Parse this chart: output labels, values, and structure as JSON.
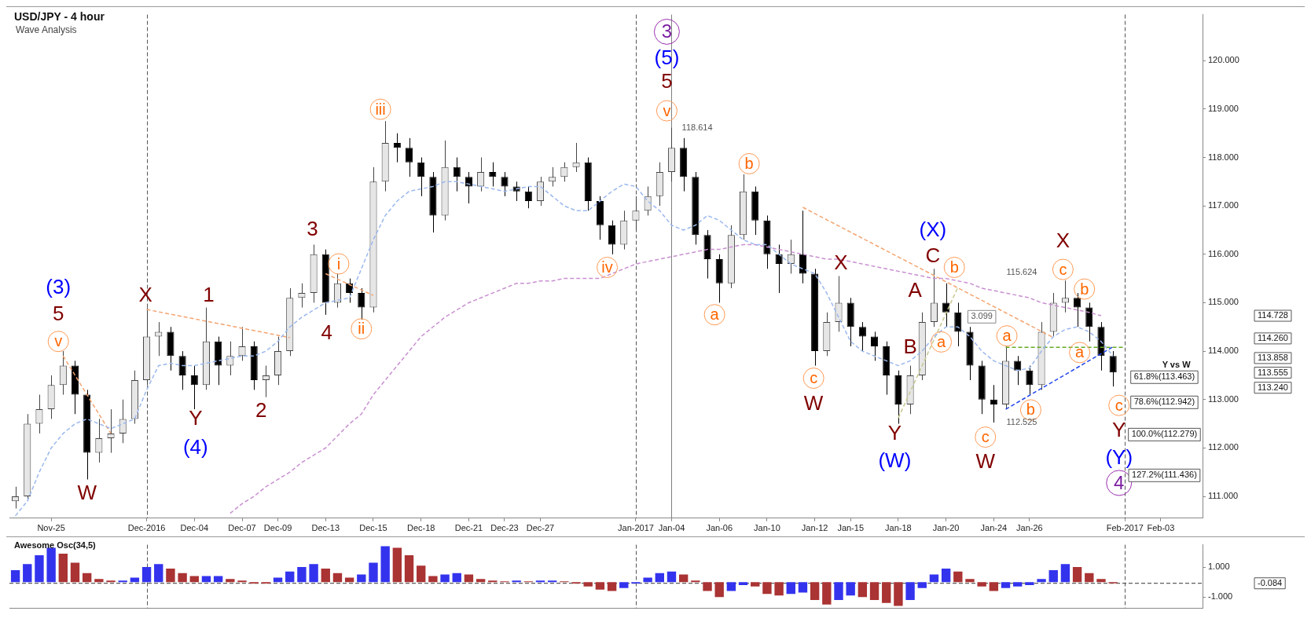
{
  "chart_data": [
    {
      "type": "candlestick",
      "title": "USD/JPY - 4 hour",
      "subtitle": "Wave Analysis",
      "ylim": [
        110.55,
        120.95
      ],
      "yticks": [
        {
          "value": 111,
          "label": "111.000"
        },
        {
          "value": 112,
          "label": "112.000"
        },
        {
          "value": 113,
          "label": "113.000"
        },
        {
          "value": 114,
          "label": "114.000"
        },
        {
          "value": 115,
          "label": "115.000"
        },
        {
          "value": 116,
          "label": "116.000"
        },
        {
          "value": 117,
          "label": "117.000"
        },
        {
          "value": 118,
          "label": "118.000"
        },
        {
          "value": 119,
          "label": "119.000"
        },
        {
          "value": 120,
          "label": "120.000"
        }
      ],
      "categories": [
        null,
        null,
        null,
        "Nov-25",
        null,
        null,
        null,
        null,
        null,
        null,
        null,
        "Dec-2016",
        null,
        null,
        null,
        "Dec-04",
        null,
        null,
        null,
        "Dec-07",
        null,
        null,
        "Dec-09",
        null,
        null,
        null,
        "Dec-13",
        null,
        null,
        null,
        "Dec-15",
        null,
        null,
        null,
        "Dec-18",
        null,
        null,
        null,
        "Dec-21",
        null,
        null,
        "Dec-23",
        null,
        null,
        "Dec-27",
        null,
        null,
        null,
        null,
        null,
        null,
        null,
        "Jan-2017",
        null,
        null,
        "Jan-04",
        null,
        null,
        null,
        "Jan-06",
        null,
        null,
        null,
        "Jan-10",
        null,
        null,
        null,
        "Jan-12",
        null,
        null,
        "Jan-15",
        null,
        null,
        null,
        "Jan-18",
        null,
        null,
        null,
        "Jan-20",
        null,
        null,
        null,
        "Jan-24",
        null,
        null,
        "Jan-26",
        null,
        null,
        null,
        null,
        null,
        null,
        null,
        "Feb-2017",
        null,
        null,
        "Feb-03",
        null,
        null,
        null
      ],
      "ohlc": [
        [
          110.9,
          111.2,
          110.75,
          111.0
        ],
        [
          111.0,
          112.7,
          110.9,
          112.5
        ],
        [
          112.5,
          113.1,
          112.3,
          112.8
        ],
        [
          112.8,
          113.5,
          112.6,
          113.3
        ],
        [
          113.3,
          114.0,
          113.1,
          113.7
        ],
        [
          113.7,
          113.8,
          112.7,
          113.1
        ],
        [
          113.1,
          113.2,
          111.35,
          111.9
        ],
        [
          111.9,
          112.6,
          111.7,
          112.2
        ],
        [
          112.2,
          112.8,
          111.9,
          112.3
        ],
        [
          112.3,
          113.0,
          112.1,
          112.6
        ],
        [
          112.6,
          113.6,
          112.5,
          113.4
        ],
        [
          113.4,
          114.9,
          113.3,
          114.3
        ],
        [
          114.3,
          114.6,
          113.9,
          114.4
        ],
        [
          114.4,
          114.5,
          113.6,
          113.9
        ],
        [
          113.9,
          114.0,
          113.2,
          113.5
        ],
        [
          113.5,
          113.7,
          112.8,
          113.3
        ],
        [
          113.3,
          114.9,
          113.2,
          114.2
        ],
        [
          114.2,
          114.3,
          113.3,
          113.7
        ],
        [
          113.7,
          114.2,
          113.5,
          113.9
        ],
        [
          113.9,
          114.5,
          113.8,
          114.1
        ],
        [
          114.1,
          114.2,
          113.2,
          113.4
        ],
        [
          113.4,
          113.7,
          113.05,
          113.5
        ],
        [
          113.5,
          114.3,
          113.3,
          114.0
        ],
        [
          114.0,
          115.3,
          113.9,
          115.1
        ],
        [
          115.1,
          115.4,
          114.9,
          115.2
        ],
        [
          115.2,
          116.2,
          115.0,
          116.0
        ],
        [
          116.0,
          116.1,
          114.75,
          115.0
        ],
        [
          115.0,
          115.6,
          114.9,
          115.4
        ],
        [
          115.4,
          115.5,
          115.0,
          115.2
        ],
        [
          115.2,
          115.3,
          114.65,
          114.9
        ],
        [
          114.9,
          117.8,
          114.8,
          117.5
        ],
        [
          117.5,
          118.75,
          117.3,
          118.3
        ],
        [
          118.3,
          118.5,
          117.9,
          118.2
        ],
        [
          118.2,
          118.4,
          117.6,
          117.9
        ],
        [
          117.9,
          118.0,
          117.2,
          117.6
        ],
        [
          117.6,
          117.7,
          116.45,
          116.8
        ],
        [
          116.8,
          118.35,
          116.7,
          117.8
        ],
        [
          117.8,
          118.0,
          117.3,
          117.6
        ],
        [
          117.6,
          117.7,
          117.05,
          117.4
        ],
        [
          117.4,
          118.0,
          117.3,
          117.7
        ],
        [
          117.7,
          117.9,
          117.4,
          117.6
        ],
        [
          117.6,
          117.7,
          117.2,
          117.4
        ],
        [
          117.4,
          117.5,
          117.1,
          117.3
        ],
        [
          117.3,
          117.4,
          116.95,
          117.1
        ],
        [
          117.1,
          117.6,
          117.0,
          117.5
        ],
        [
          117.5,
          117.8,
          117.4,
          117.6
        ],
        [
          117.6,
          117.9,
          117.5,
          117.8
        ],
        [
          117.8,
          118.3,
          117.7,
          117.9
        ],
        [
          117.9,
          118.0,
          116.9,
          117.1
        ],
        [
          117.1,
          117.2,
          116.3,
          116.6
        ],
        [
          116.6,
          116.7,
          116.0,
          116.2
        ],
        [
          116.2,
          116.9,
          116.1,
          116.7
        ],
        [
          116.7,
          117.2,
          116.5,
          116.9
        ],
        [
          116.9,
          117.4,
          116.8,
          117.2
        ],
        [
          117.2,
          117.9,
          117.0,
          117.7
        ],
        [
          117.7,
          118.614,
          117.5,
          118.2
        ],
        [
          118.2,
          118.4,
          117.3,
          117.6
        ],
        [
          117.6,
          117.7,
          116.2,
          116.4
        ],
        [
          116.4,
          116.5,
          115.5,
          115.9
        ],
        [
          115.9,
          116.0,
          115.0,
          115.4
        ],
        [
          115.4,
          116.6,
          115.3,
          116.4
        ],
        [
          116.4,
          117.65,
          116.3,
          117.3
        ],
        [
          117.3,
          117.4,
          116.4,
          116.7
        ],
        [
          116.7,
          116.8,
          115.7,
          116.0
        ],
        [
          116.0,
          116.2,
          115.2,
          115.8
        ],
        [
          115.8,
          116.3,
          115.6,
          116.0
        ],
        [
          116.0,
          116.9,
          115.4,
          115.6
        ],
        [
          115.6,
          115.7,
          113.7,
          114.0
        ],
        [
          114.0,
          114.8,
          113.9,
          114.6
        ],
        [
          114.6,
          115.55,
          114.4,
          115.0
        ],
        [
          115.0,
          115.1,
          114.1,
          114.5
        ],
        [
          114.5,
          114.6,
          114.0,
          114.3
        ],
        [
          114.3,
          114.4,
          113.8,
          114.1
        ],
        [
          114.1,
          114.2,
          113.1,
          113.5
        ],
        [
          113.5,
          113.6,
          112.5,
          112.9
        ],
        [
          112.9,
          113.7,
          112.7,
          113.5
        ],
        [
          113.5,
          114.8,
          113.4,
          114.6
        ],
        [
          114.6,
          115.7,
          114.5,
          115.0
        ],
        [
          115.0,
          115.4,
          114.5,
          114.8
        ],
        [
          114.8,
          115.0,
          114.1,
          114.4
        ],
        [
          114.4,
          114.5,
          113.4,
          113.7
        ],
        [
          113.7,
          113.8,
          112.7,
          113.0
        ],
        [
          113.0,
          113.3,
          112.525,
          112.9
        ],
        [
          112.9,
          114.1,
          112.8,
          113.8
        ],
        [
          113.8,
          113.9,
          113.3,
          113.6
        ],
        [
          113.6,
          113.7,
          113.1,
          113.3
        ],
        [
          113.3,
          114.6,
          113.2,
          114.4
        ],
        [
          114.4,
          115.2,
          114.3,
          115.0
        ],
        [
          115.0,
          115.46,
          114.8,
          115.1
        ],
        [
          115.1,
          115.2,
          114.5,
          114.9
        ],
        [
          114.9,
          115.0,
          114.2,
          114.5
        ],
        [
          114.5,
          114.6,
          113.6,
          113.9
        ],
        [
          113.9,
          114.0,
          113.27,
          113.56
        ],
        null,
        null,
        null,
        null,
        null,
        null,
        null
      ],
      "series": [
        {
          "type": "line",
          "color": "#9bb8ee",
          "line_style": "dashed",
          "values": [
            110.6,
            110.9,
            111.5,
            112.0,
            112.3,
            112.5,
            112.6,
            112.5,
            112.4,
            112.5,
            112.6,
            113.2,
            113.7,
            113.75,
            113.7,
            113.7,
            113.75,
            113.8,
            113.85,
            113.9,
            113.9,
            114.0,
            114.2,
            114.5,
            114.7,
            114.85,
            115.0,
            115.05,
            115.1,
            115.7,
            116.3,
            116.8,
            117.1,
            117.3,
            117.35,
            117.4,
            117.5,
            117.5,
            117.45,
            117.4,
            117.35,
            117.3,
            117.35,
            117.4,
            117.4,
            117.2,
            117.0,
            116.9,
            116.9,
            117.1,
            117.3,
            117.45,
            117.4,
            117.1,
            116.9,
            116.6,
            116.5,
            116.6,
            116.8,
            116.7,
            116.5,
            116.3,
            116.2,
            116.2,
            116.0,
            115.8,
            115.7,
            115.6,
            115.2,
            114.7,
            114.2,
            114.0,
            113.9,
            113.8,
            113.7,
            113.8,
            114.0,
            114.3,
            114.5,
            114.5,
            114.3,
            114.0,
            113.8,
            113.7,
            113.6,
            113.65,
            114.0,
            114.3,
            114.45,
            114.5,
            114.4,
            114.2,
            113.9,
            null,
            null,
            null,
            null,
            null,
            null,
            null
          ]
        },
        {
          "type": "line",
          "color": "#c890d0",
          "line_style": "dashed",
          "values": [
            null,
            null,
            null,
            null,
            null,
            null,
            null,
            null,
            null,
            null,
            null,
            null,
            null,
            null,
            null,
            null,
            null,
            null,
            110.65,
            110.85,
            111.0,
            111.2,
            111.35,
            111.5,
            111.7,
            111.85,
            112.0,
            112.25,
            112.5,
            112.7,
            113.1,
            113.4,
            113.7,
            114.0,
            114.3,
            114.5,
            114.7,
            114.85,
            115.0,
            115.1,
            115.2,
            115.3,
            115.4,
            115.4,
            115.45,
            115.45,
            115.5,
            115.5,
            115.5,
            115.5,
            115.6,
            115.7,
            115.8,
            115.85,
            115.9,
            115.95,
            116.0,
            116.05,
            116.1,
            116.1,
            116.15,
            116.2,
            116.2,
            116.15,
            116.1,
            116.05,
            116.0,
            115.95,
            115.9,
            115.9,
            115.85,
            115.8,
            115.75,
            115.7,
            115.65,
            115.6,
            115.55,
            115.5,
            115.5,
            115.45,
            115.4,
            115.3,
            115.25,
            115.2,
            115.15,
            115.1,
            115.0,
            114.95,
            114.9,
            114.85,
            114.8,
            114.73,
            null,
            null,
            null,
            null,
            null,
            null,
            null,
            null
          ]
        },
        {
          "type": "line",
          "color": "#f4a470",
          "line_style": "dashed",
          "values": [
            null,
            null,
            null,
            null,
            113.9,
            null,
            null,
            null,
            112.3,
            null,
            null,
            null,
            null,
            null,
            null,
            null,
            null,
            null,
            null,
            null,
            null,
            null,
            null,
            null,
            null,
            null,
            null,
            null,
            null,
            null,
            null,
            null,
            null,
            null,
            null,
            null,
            null,
            null,
            null,
            null,
            null,
            null,
            null,
            null,
            null,
            null,
            null,
            null,
            null,
            null,
            null,
            null,
            null,
            null,
            null,
            null,
            null,
            null,
            null,
            null,
            null,
            null,
            null,
            null,
            null,
            null,
            null,
            null,
            null,
            null,
            null,
            null,
            null,
            null,
            null,
            null,
            null,
            null,
            null,
            null,
            null,
            null,
            null,
            null,
            null,
            null,
            null,
            null,
            null,
            null,
            null,
            null,
            null,
            null,
            null,
            null,
            null,
            null,
            null,
            null
          ]
        },
        {
          "type": "line",
          "color": "#f4a470",
          "line_style": "dashed",
          "values": [
            null,
            null,
            null,
            null,
            null,
            null,
            null,
            null,
            null,
            null,
            null,
            114.86,
            null,
            null,
            null,
            null,
            null,
            null,
            null,
            null,
            null,
            null,
            null,
            114.28,
            null,
            null,
            null,
            null,
            null,
            null,
            null,
            null,
            null,
            null,
            null,
            null,
            null,
            null,
            null,
            null,
            null,
            null,
            null,
            null,
            null,
            null,
            null,
            null,
            null,
            null,
            null,
            null,
            null,
            null,
            null,
            null,
            null,
            null,
            null,
            null,
            null,
            null,
            null,
            null,
            null,
            null,
            null,
            null,
            null,
            null,
            null,
            null,
            null,
            null,
            null,
            null,
            null,
            null,
            null,
            null,
            null,
            null,
            null,
            null,
            null,
            null,
            null,
            null,
            null,
            null,
            null,
            null,
            null,
            null,
            null,
            null,
            null,
            null,
            null,
            null
          ]
        },
        {
          "type": "line",
          "color": "#f4a470",
          "line_style": "dashed",
          "values": [
            null,
            null,
            null,
            null,
            null,
            null,
            null,
            null,
            null,
            null,
            null,
            null,
            null,
            null,
            null,
            null,
            null,
            null,
            null,
            null,
            null,
            null,
            null,
            null,
            null,
            null,
            115.6,
            null,
            null,
            null,
            115.15,
            null,
            null,
            null,
            null,
            null,
            null,
            null,
            null,
            null,
            null,
            null,
            null,
            null,
            null,
            null,
            null,
            null,
            null,
            null,
            null,
            null,
            null,
            null,
            null,
            null,
            null,
            null,
            null,
            null,
            null,
            null,
            null,
            null,
            null,
            null,
            null,
            null,
            null,
            null,
            null,
            null,
            null,
            null,
            null,
            null,
            null,
            null,
            null,
            null,
            null,
            null,
            null,
            null,
            null,
            null,
            null,
            null,
            null,
            null,
            null,
            null,
            null,
            null,
            null,
            null,
            null,
            null,
            null,
            null
          ]
        },
        {
          "type": "line",
          "color": "#f4a470",
          "line_style": "dashed",
          "values": [
            null,
            null,
            null,
            null,
            null,
            null,
            null,
            null,
            null,
            null,
            null,
            null,
            null,
            null,
            null,
            null,
            null,
            null,
            null,
            null,
            null,
            null,
            null,
            null,
            null,
            null,
            null,
            null,
            null,
            null,
            null,
            null,
            null,
            null,
            null,
            null,
            null,
            null,
            null,
            null,
            null,
            null,
            null,
            null,
            null,
            null,
            null,
            null,
            null,
            null,
            null,
            null,
            null,
            null,
            null,
            null,
            null,
            null,
            null,
            null,
            null,
            null,
            null,
            null,
            null,
            null,
            116.97,
            null,
            null,
            null,
            null,
            null,
            null,
            null,
            null,
            null,
            null,
            null,
            null,
            null,
            null,
            null,
            null,
            null,
            null,
            null,
            null,
            114.28,
            null,
            null,
            null,
            null,
            null,
            null,
            null,
            null,
            null,
            null,
            null,
            null
          ]
        },
        {
          "type": "line",
          "color": "#c8c890",
          "line_style": "dashed",
          "values": [
            null,
            null,
            null,
            null,
            null,
            null,
            null,
            null,
            null,
            null,
            null,
            null,
            null,
            null,
            null,
            null,
            null,
            null,
            null,
            null,
            null,
            null,
            null,
            null,
            null,
            null,
            null,
            null,
            null,
            null,
            null,
            null,
            null,
            null,
            null,
            null,
            null,
            null,
            null,
            null,
            null,
            null,
            null,
            null,
            null,
            null,
            null,
            null,
            null,
            null,
            null,
            null,
            null,
            null,
            null,
            null,
            null,
            null,
            null,
            null,
            null,
            null,
            null,
            null,
            null,
            null,
            null,
            null,
            null,
            null,
            null,
            null,
            null,
            null,
            112.62,
            null,
            null,
            null,
            null,
            115.32,
            null,
            null,
            null,
            null,
            null,
            null,
            null,
            null,
            null,
            null,
            null,
            null,
            null,
            null,
            null,
            null,
            null,
            null,
            null,
            null
          ]
        },
        {
          "type": "line",
          "color": "#66aa22",
          "line_style": "dashed",
          "values": [
            null,
            null,
            null,
            null,
            null,
            null,
            null,
            null,
            null,
            null,
            null,
            null,
            null,
            null,
            null,
            null,
            null,
            null,
            null,
            null,
            null,
            null,
            null,
            null,
            null,
            null,
            null,
            null,
            null,
            null,
            null,
            null,
            null,
            null,
            null,
            null,
            null,
            null,
            null,
            null,
            null,
            null,
            null,
            null,
            null,
            null,
            null,
            null,
            null,
            null,
            null,
            null,
            null,
            null,
            null,
            null,
            null,
            null,
            null,
            null,
            null,
            null,
            null,
            null,
            null,
            null,
            null,
            null,
            null,
            null,
            null,
            null,
            null,
            null,
            null,
            null,
            null,
            null,
            null,
            null,
            null,
            null,
            null,
            114.08,
            null,
            null,
            null,
            null,
            null,
            null,
            null,
            null,
            null,
            114.08,
            null,
            null,
            null,
            null,
            null,
            null
          ]
        },
        {
          "type": "line",
          "color": "#2244ee",
          "line_style": "dashed",
          "values": [
            null,
            null,
            null,
            null,
            null,
            null,
            null,
            null,
            null,
            null,
            null,
            null,
            null,
            null,
            null,
            null,
            null,
            null,
            null,
            null,
            null,
            null,
            null,
            null,
            null,
            null,
            null,
            null,
            null,
            null,
            null,
            null,
            null,
            null,
            null,
            null,
            null,
            null,
            null,
            null,
            null,
            null,
            null,
            null,
            null,
            null,
            null,
            null,
            null,
            null,
            null,
            null,
            null,
            null,
            null,
            null,
            null,
            null,
            null,
            null,
            null,
            null,
            null,
            null,
            null,
            null,
            null,
            null,
            null,
            null,
            null,
            null,
            null,
            null,
            null,
            null,
            null,
            null,
            null,
            null,
            null,
            null,
            null,
            112.8,
            null,
            null,
            null,
            null,
            null,
            null,
            null,
            null,
            114.09,
            null,
            null,
            null,
            null,
            null,
            null,
            null
          ]
        }
      ],
      "ref_lines": [
        {
          "axis": "x",
          "value": "Dec-2016",
          "line_style": "dashed",
          "color": "#555555"
        },
        {
          "axis": "x",
          "value": "Jan-2017",
          "line_style": "dashed",
          "color": "#555555"
        },
        {
          "axis": "x",
          "value": "Feb-2017",
          "line_style": "dashed",
          "color": "#555555"
        },
        {
          "axis": "x",
          "value": "Jan-04",
          "line_style": "solid",
          "color": "#808080"
        }
      ],
      "annotations": [
        "(3)",
        "5",
        "v",
        "W",
        "X",
        "1",
        "Y",
        "(4)",
        "2",
        "3",
        "i",
        "4",
        "ii",
        "iii",
        "iv",
        "3",
        "(5)",
        "5",
        "v",
        "118.614",
        "a",
        "b",
        "c",
        "W",
        "X",
        "(X)",
        "C",
        "b",
        "A",
        "B",
        "a",
        "Y",
        "(W)",
        "c",
        "W",
        "a",
        "b",
        "X",
        "c",
        "b",
        "a",
        "c",
        "Y",
        "(Y)",
        "4",
        "115.624",
        "112.525",
        "3.099",
        "Y vs W",
        "61.8%(113.463)",
        "78.6%(112.942)",
        "100.0%(112.279)",
        "127.2%(111.436)",
        "114.728",
        "114.260",
        "113.858",
        "113.555",
        "113.240"
      ]
    },
    {
      "type": "bar",
      "title": "Awesome Osc(34,5)",
      "ylim": [
        -1.75,
        2.5
      ],
      "tick_labels": "y",
      "yticks": [
        {
          "value": 1,
          "label": "1.000"
        },
        {
          "value": -1,
          "label": "-1.000"
        }
      ],
      "categories": [
        null,
        null,
        null,
        "Nov-25",
        null,
        null,
        null,
        null,
        null,
        null,
        null,
        "Dec-2016",
        null,
        null,
        null,
        "Dec-04",
        null,
        null,
        null,
        "Dec-07",
        null,
        null,
        "Dec-09",
        null,
        null,
        null,
        "Dec-13",
        null,
        null,
        null,
        "Dec-15",
        null,
        null,
        null,
        "Dec-18",
        null,
        null,
        null,
        "Dec-21",
        null,
        null,
        "Dec-23",
        null,
        null,
        "Dec-27",
        null,
        null,
        null,
        null,
        null,
        null,
        null,
        "Jan-2017",
        null,
        null,
        "Jan-04",
        null,
        null,
        null,
        "Jan-06",
        null,
        null,
        null,
        "Jan-10",
        null,
        null,
        null,
        "Jan-12",
        null,
        null,
        "Jan-15",
        null,
        null,
        null,
        "Jan-18",
        null,
        null,
        null,
        "Jan-20",
        null,
        null,
        null,
        "Jan-24",
        null,
        null,
        "Jan-26",
        null,
        null,
        null,
        null,
        null,
        null,
        null,
        "Feb-2017",
        null,
        null,
        "Feb-03",
        null,
        null,
        null
      ],
      "values": [
        0.8,
        1.2,
        1.8,
        2.3,
        1.9,
        1.3,
        0.6,
        0.2,
        0.1,
        0.1,
        0.3,
        1.0,
        1.2,
        0.9,
        0.6,
        0.4,
        0.4,
        0.4,
        0.2,
        0.1,
        -0.1,
        -0.1,
        0.3,
        0.7,
        1.0,
        1.2,
        0.9,
        0.6,
        0.3,
        0.5,
        1.3,
        2.4,
        2.3,
        1.8,
        1.1,
        0.4,
        0.5,
        0.6,
        0.5,
        0.2,
        0.1,
        0.05,
        0.1,
        0.05,
        0.1,
        0.1,
        0.05,
        -0.1,
        -0.3,
        -0.5,
        -0.6,
        -0.4,
        -0.1,
        0.3,
        0.6,
        0.7,
        0.5,
        0.1,
        -0.6,
        -1.0,
        -0.6,
        -0.2,
        -0.3,
        -0.8,
        -0.9,
        -0.8,
        -0.7,
        -1.2,
        -1.5,
        -1.2,
        -0.9,
        -1.0,
        -1.2,
        -1.4,
        -1.6,
        -1.2,
        -0.4,
        0.5,
        0.9,
        0.7,
        0.2,
        -0.3,
        -0.6,
        -0.4,
        -0.3,
        -0.2,
        0.2,
        0.8,
        1.2,
        1.0,
        0.6,
        0.2,
        -0.084,
        null,
        null,
        null,
        null,
        null,
        null,
        null
      ],
      "colors": [
        "#3333ee",
        "#3333ee",
        "#3333ee",
        "#3333ee",
        "#aa3333",
        "#aa3333",
        "#aa3333",
        "#aa3333",
        "#aa3333",
        "#3333ee",
        "#3333ee",
        "#3333ee",
        "#3333ee",
        "#aa3333",
        "#aa3333",
        "#aa3333",
        "#3333ee",
        "#3333ee",
        "#aa3333",
        "#aa3333",
        "#aa3333",
        "#aa3333",
        "#3333ee",
        "#3333ee",
        "#3333ee",
        "#3333ee",
        "#aa3333",
        "#aa3333",
        "#aa3333",
        "#3333ee",
        "#3333ee",
        "#3333ee",
        "#aa3333",
        "#aa3333",
        "#aa3333",
        "#aa3333",
        "#3333ee",
        "#3333ee",
        "#aa3333",
        "#aa3333",
        "#aa3333",
        "#aa3333",
        "#3333ee",
        "#aa3333",
        "#3333ee",
        "#3333ee",
        "#aa3333",
        "#aa3333",
        "#aa3333",
        "#aa3333",
        "#aa3333",
        "#3333ee",
        "#3333ee",
        "#3333ee",
        "#3333ee",
        "#3333ee",
        "#aa3333",
        "#aa3333",
        "#aa3333",
        "#aa3333",
        "#3333ee",
        "#3333ee",
        "#aa3333",
        "#aa3333",
        "#aa3333",
        "#3333ee",
        "#3333ee",
        "#aa3333",
        "#aa3333",
        "#3333ee",
        "#3333ee",
        "#aa3333",
        "#aa3333",
        "#aa3333",
        "#aa3333",
        "#3333ee",
        "#3333ee",
        "#3333ee",
        "#3333ee",
        "#aa3333",
        "#aa3333",
        "#aa3333",
        "#aa3333",
        "#3333ee",
        "#3333ee",
        "#3333ee",
        "#3333ee",
        "#3333ee",
        "#3333ee",
        "#aa3333",
        "#aa3333",
        "#aa3333",
        "#aa3333",
        null,
        null,
        null,
        null,
        null,
        null,
        null
      ],
      "ref_lines": [
        {
          "axis": "y",
          "value": -0.084,
          "label": "-0.084",
          "line_style": "dashed",
          "color": "#333333"
        },
        {
          "axis": "x",
          "value": "Dec-2016",
          "line_style": "dashed",
          "color": "#555555"
        },
        {
          "axis": "x",
          "value": "Jan-2017",
          "line_style": "dashed",
          "color": "#555555"
        },
        {
          "axis": "x",
          "value": "Feb-2017",
          "line_style": "dashed",
          "color": "#555555"
        }
      ]
    }
  ]
}
